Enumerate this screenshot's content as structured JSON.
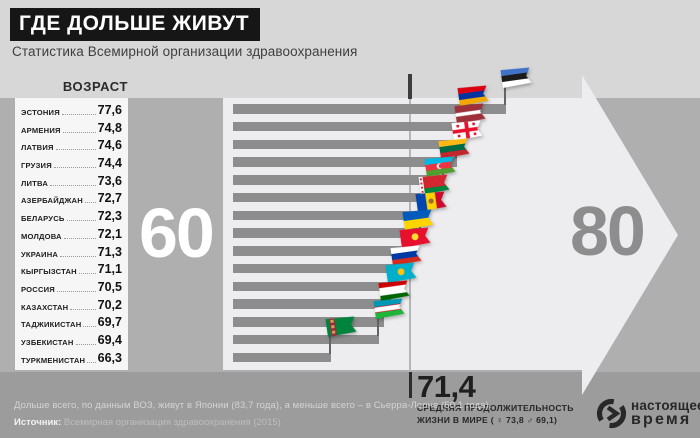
{
  "header": {
    "title": "ГДЕ ДОЛЬШЕ ЖИВУТ",
    "subtitle": "Статистика Всемирной организации здравоохранения"
  },
  "table": {
    "column_header": "ВОЗРАСТ"
  },
  "countries": [
    {
      "name": "ЭСТОНИЯ",
      "value_label": "77,6",
      "value": 77.6,
      "slug": "estonia",
      "flag": {
        "kind": "h",
        "stripes": [
          "#4272C8",
          "#1c1c1c",
          "#ffffff"
        ]
      }
    },
    {
      "name": "АРМЕНИЯ",
      "value_label": "74,8",
      "value": 74.8,
      "slug": "armenia",
      "flag": {
        "kind": "h",
        "stripes": [
          "#D90012",
          "#0033A0",
          "#F2A800"
        ]
      }
    },
    {
      "name": "ЛАТВИЯ",
      "value_label": "74,6",
      "value": 74.6,
      "slug": "latvia",
      "flag": {
        "kind": "hw",
        "stripes": [
          [
            "#9E3039",
            2
          ],
          [
            "#ffffff",
            1
          ],
          [
            "#9E3039",
            2
          ]
        ]
      }
    },
    {
      "name": "ГРУЗИЯ",
      "value_label": "74,4",
      "value": 74.4,
      "slug": "georgia",
      "flag": {
        "kind": "solid",
        "color": "#ffffff",
        "overlay": "georgia-cross",
        "accent": "#E8112D"
      }
    },
    {
      "name": "ЛИТВА",
      "value_label": "73,6",
      "value": 73.6,
      "slug": "lithuania",
      "flag": {
        "kind": "h",
        "stripes": [
          "#FDB913",
          "#006A44",
          "#C1272D"
        ]
      }
    },
    {
      "name": "АЗЕРБАЙДЖАН",
      "value_label": "72,7",
      "value": 72.7,
      "slug": "azerbaijan",
      "flag": {
        "kind": "h",
        "stripes": [
          "#00B9E4",
          "#EF3340",
          "#509E2F"
        ],
        "overlay": "crescent",
        "accent": "#ffffff"
      }
    },
    {
      "name": "БЕЛАРУСЬ",
      "value_label": "72,3",
      "value": 72.3,
      "slug": "belarus",
      "flag": {
        "kind": "belarus",
        "colors": [
          "#D22730",
          "#00843D",
          "#ffffff"
        ]
      }
    },
    {
      "name": "МОЛДОВА",
      "value_label": "72,1",
      "value": 72.1,
      "slug": "moldova",
      "flag": {
        "kind": "v",
        "stripes": [
          "#0046AE",
          "#FFD200",
          "#CC092F"
        ],
        "overlay": "emblem",
        "accent": "#9a6a32"
      }
    },
    {
      "name": "УКРАИНА",
      "value_label": "71,3",
      "value": 71.3,
      "slug": "ukraine",
      "flag": {
        "kind": "h",
        "stripes": [
          "#005BBB",
          "#FFD500"
        ]
      }
    },
    {
      "name": "КЫРГЫЗСТАН",
      "value_label": "71,1",
      "value": 71.1,
      "slug": "kyrgyzstan",
      "flag": {
        "kind": "solid",
        "color": "#E8112D",
        "overlay": "sun",
        "accent": "#FFDE2E"
      }
    },
    {
      "name": "РОССИЯ",
      "value_label": "70,5",
      "value": 70.5,
      "slug": "russia",
      "flag": {
        "kind": "h",
        "stripes": [
          "#ffffff",
          "#0039A6",
          "#D52B1E"
        ]
      }
    },
    {
      "name": "КАЗАХСТАН",
      "value_label": "70,2",
      "value": 70.2,
      "slug": "kazakhstan",
      "flag": {
        "kind": "solid",
        "color": "#00AFCA",
        "overlay": "sun",
        "accent": "#FEC50C"
      }
    },
    {
      "name": "ТАДЖИКИСТАН",
      "value_label": "69,7",
      "value": 69.7,
      "slug": "tajikistan",
      "flag": {
        "kind": "hw",
        "stripes": [
          [
            "#CC0000",
            2
          ],
          [
            "#ffffff",
            3
          ],
          [
            "#006600",
            2
          ]
        ]
      }
    },
    {
      "name": "УЗБЕКИСТАН",
      "value_label": "69,4",
      "value": 69.4,
      "slug": "uzbekistan",
      "flag": {
        "kind": "hw",
        "stripes": [
          [
            "#0099B5",
            9
          ],
          [
            "#CE1126",
            1
          ],
          [
            "#ffffff",
            7
          ],
          [
            "#CE1126",
            1
          ],
          [
            "#1EB53A",
            9
          ]
        ]
      }
    },
    {
      "name": "ТУРКМЕНИСТАН",
      "value_label": "66,3",
      "value": 66.3,
      "slug": "turkmenistan",
      "flag": {
        "kind": "turkmen",
        "colors": [
          "#00843D",
          "#9C2A3A"
        ]
      }
    }
  ],
  "chart_data": {
    "type": "bar",
    "orientation": "horizontal",
    "title": "ГДЕ ДОЛЬШЕ ЖИВУТ",
    "subtitle": "Статистика Всемирной организации здравоохранения",
    "categories": [
      "ЭСТОНИЯ",
      "АРМЕНИЯ",
      "ЛАТВИЯ",
      "ГРУЗИЯ",
      "ЛИТВА",
      "АЗЕРБАЙДЖАН",
      "БЕЛАРУСЬ",
      "МОЛДОВА",
      "УКРАИНА",
      "КЫРГЫЗСТАН",
      "РОССИЯ",
      "КАЗАХСТАН",
      "ТАДЖИКИСТАН",
      "УЗБЕКИСТАН",
      "ТУРКМЕНИСТАН"
    ],
    "values": [
      77.6,
      74.8,
      74.6,
      74.4,
      73.6,
      72.7,
      72.3,
      72.1,
      71.3,
      71.1,
      70.5,
      70.2,
      69.7,
      69.4,
      66.3
    ],
    "xlim": [
      60,
      80
    ],
    "axis_labels": {
      "min": "60",
      "max": "80"
    },
    "value_column_header": "ВОЗРАСТ",
    "world_average": {
      "value": 71.4,
      "label": "71,4",
      "caption": [
        "СРЕДНЯЯ ПРОДОЛЖИТЕЛЬНОСТЬ",
        "ЖИЗНИ В МИРЕ ( ♀ 73,8   ♂ 69,1)"
      ]
    },
    "legend": false,
    "grid": false
  },
  "footer": {
    "note": "Дольше всего, по данным ВОЗ, живут в Японии (83,7 года), а меньше всего – в Сьерра-Леоне (50,1 года).",
    "source_label": "Источник:",
    "source_text": " Всемирная организация здравоохранения (2015)"
  },
  "logo": {
    "word1": "настоящее",
    "word2": "время"
  },
  "colors": {
    "header_bg": "#d7d7d7",
    "chart_bg": "#afafaf",
    "footer_bg": "#9c9c9c",
    "arrow": "#ededef",
    "bar": "#8d8d8d",
    "panel": "#f6f6f6",
    "title_box": "#161616",
    "marker_dark": "#2c2c2c",
    "marker_light": "#b5b5b5"
  }
}
